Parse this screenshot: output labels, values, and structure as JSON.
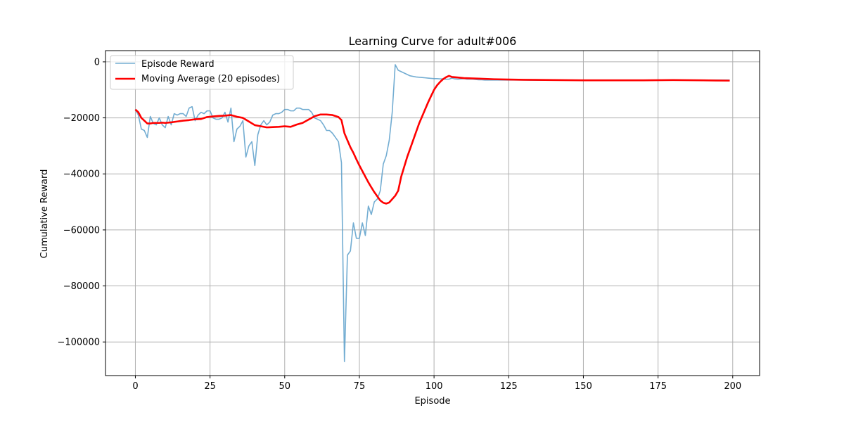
{
  "chart_data": {
    "type": "line",
    "title": "Learning Curve for adult#006",
    "xlabel": "Episode",
    "ylabel": "Cumulative Reward",
    "xlim": [
      -10,
      209
    ],
    "ylim": [
      -112000,
      4000
    ],
    "xticks": [
      0,
      25,
      50,
      75,
      100,
      125,
      150,
      175,
      200
    ],
    "yticks": [
      0,
      -20000,
      -40000,
      -60000,
      -80000,
      -100000
    ],
    "grid": true,
    "legend_position": "top-left",
    "series": [
      {
        "name": "Episode Reward",
        "color": "#5b9fca",
        "x": [
          0,
          1,
          2,
          3,
          4,
          5,
          6,
          7,
          8,
          9,
          10,
          11,
          12,
          13,
          14,
          15,
          16,
          17,
          18,
          19,
          20,
          21,
          22,
          23,
          24,
          25,
          26,
          27,
          28,
          29,
          30,
          31,
          32,
          33,
          34,
          35,
          36,
          37,
          38,
          39,
          40,
          41,
          42,
          43,
          44,
          45,
          46,
          47,
          48,
          49,
          50,
          51,
          52,
          53,
          54,
          55,
          56,
          57,
          58,
          59,
          60,
          61,
          62,
          63,
          64,
          65,
          66,
          67,
          68,
          69,
          70,
          71,
          72,
          73,
          74,
          75,
          76,
          77,
          78,
          79,
          80,
          81,
          82,
          83,
          84,
          85,
          86,
          87,
          88,
          89,
          90,
          91,
          92,
          93,
          94,
          95,
          96,
          97,
          98,
          99,
          100,
          101,
          102,
          103,
          104,
          105,
          106,
          107,
          108,
          109,
          110,
          111,
          112,
          113,
          114,
          115,
          116,
          117,
          118,
          119,
          120,
          125,
          130,
          135,
          140,
          145,
          150,
          155,
          160,
          165,
          170,
          175,
          180,
          185,
          190,
          195,
          199
        ],
        "y": [
          -17000,
          -19000,
          -24000,
          -24500,
          -27000,
          -19500,
          -22000,
          -22500,
          -20000,
          -22500,
          -23500,
          -19500,
          -22500,
          -18500,
          -19000,
          -18500,
          -18500,
          -19500,
          -16500,
          -16000,
          -21000,
          -19000,
          -18000,
          -18500,
          -17500,
          -17500,
          -20000,
          -20500,
          -20500,
          -20000,
          -18000,
          -21500,
          -16500,
          -28500,
          -24000,
          -23000,
          -21000,
          -34000,
          -30000,
          -28500,
          -37000,
          -26000,
          -22500,
          -21000,
          -22500,
          -21500,
          -19000,
          -18500,
          -18500,
          -18000,
          -17000,
          -17000,
          -17500,
          -17500,
          -16500,
          -16500,
          -17000,
          -17000,
          -17000,
          -18000,
          -20000,
          -20500,
          -21000,
          -22500,
          -24500,
          -24500,
          -25500,
          -27000,
          -28500,
          -36000,
          -107000,
          -69000,
          -67500,
          -57500,
          -63000,
          -63000,
          -57500,
          -62000,
          -51500,
          -54500,
          -50000,
          -49000,
          -46000,
          -36500,
          -33500,
          -28000,
          -18000,
          -1000,
          -3000,
          -3500,
          -4000,
          -4500,
          -5000,
          -5200,
          -5400,
          -5500,
          -5600,
          -5700,
          -5800,
          -5900,
          -6000,
          -6000,
          -6100,
          -6100,
          -6200,
          -6200,
          -5800,
          -6100,
          -6200,
          -6100,
          -6000,
          -6200,
          -6200,
          -6200,
          -6300,
          -6400,
          -6400,
          -6500,
          -6500,
          -6500,
          -6500,
          -6500,
          -6500,
          -6600,
          -6600,
          -6500,
          -6600,
          -6500,
          -6500,
          -6500,
          -6500,
          -6500,
          -6500,
          -6500,
          -6500,
          -6500,
          -6500
        ]
      },
      {
        "name": "Moving Average (20 episodes)",
        "color": "#ff0000",
        "x": [
          0,
          1,
          2,
          3,
          4,
          5,
          6,
          7,
          8,
          9,
          10,
          12,
          14,
          16,
          18,
          20,
          22,
          24,
          26,
          28,
          30,
          32,
          34,
          36,
          38,
          40,
          42,
          44,
          46,
          48,
          50,
          52,
          54,
          56,
          58,
          60,
          62,
          64,
          66,
          68,
          69,
          70,
          71,
          72,
          73,
          74,
          75,
          76,
          77,
          78,
          79,
          80,
          81,
          82,
          83,
          84,
          85,
          86,
          87,
          88,
          89,
          90,
          91,
          92,
          93,
          94,
          95,
          96,
          97,
          98,
          99,
          100,
          101,
          102,
          103,
          104,
          105,
          106,
          108,
          110,
          115,
          120,
          125,
          130,
          140,
          150,
          160,
          170,
          180,
          190,
          199
        ],
        "y": [
          -17000,
          -18000,
          -20000,
          -21000,
          -22000,
          -22000,
          -21800,
          -21800,
          -21800,
          -21700,
          -21800,
          -21600,
          -21300,
          -21000,
          -20800,
          -20500,
          -20400,
          -19700,
          -19500,
          -19300,
          -19200,
          -19000,
          -19600,
          -20000,
          -21300,
          -22600,
          -23000,
          -23400,
          -23300,
          -23200,
          -23000,
          -23200,
          -22400,
          -21800,
          -20600,
          -19400,
          -18800,
          -18800,
          -19000,
          -19700,
          -20800,
          -25500,
          -28000,
          -30500,
          -32500,
          -34800,
          -37000,
          -39000,
          -41000,
          -43000,
          -44800,
          -46500,
          -48000,
          -49500,
          -50300,
          -50600,
          -50200,
          -49000,
          -47800,
          -46000,
          -41000,
          -37500,
          -34000,
          -31000,
          -28000,
          -25000,
          -22000,
          -19500,
          -17000,
          -14500,
          -12200,
          -10000,
          -8400,
          -7200,
          -6200,
          -5500,
          -5000,
          -5400,
          -5600,
          -5800,
          -6000,
          -6200,
          -6300,
          -6400,
          -6500,
          -6600,
          -6600,
          -6600,
          -6500,
          -6600,
          -6700
        ]
      }
    ]
  }
}
